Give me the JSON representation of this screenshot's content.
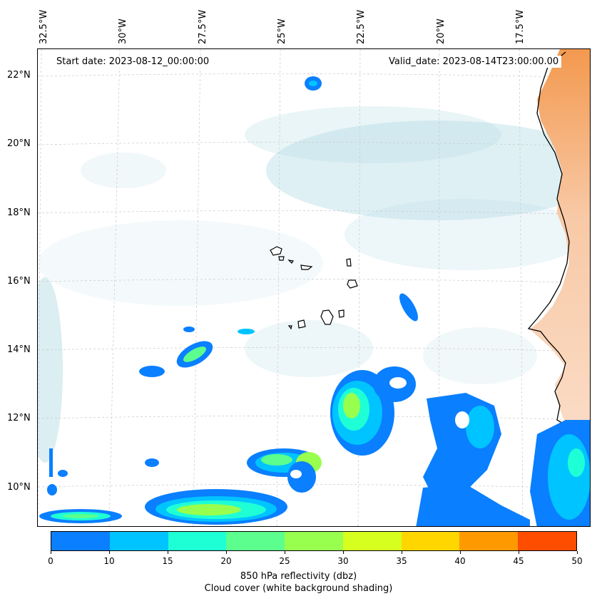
{
  "longitude_labels": [
    "32.5°W",
    "30°W",
    "27.5°W",
    "25°W",
    "22.5°W",
    "20°W",
    "17.5°W"
  ],
  "latitude_labels": [
    "22°N",
    "20°N",
    "18°N",
    "16°N",
    "14°N",
    "12°N",
    "10°N"
  ],
  "start_date": "Start date: 2023-08-12_00:00:00",
  "valid_date": "Valid_date: 2023-08-14T23:00:00.00",
  "colorbar": {
    "ticks": [
      "0",
      "10",
      "15",
      "20",
      "25",
      "30",
      "35",
      "40",
      "45",
      "50"
    ],
    "colors": [
      "#0a7fff",
      "#00c4ff",
      "#1fffd6",
      "#5cff8e",
      "#98ff4e",
      "#d6ff1f",
      "#ffd600",
      "#ff9900",
      "#ff4d00"
    ],
    "label_line1": "850 hPa reflectivity (dbz)",
    "label_line2": "Cloud cover (white background shading)"
  },
  "colors": {
    "land": "#f6a060",
    "cloud": "#b7dde6",
    "coastline": "#000000"
  }
}
